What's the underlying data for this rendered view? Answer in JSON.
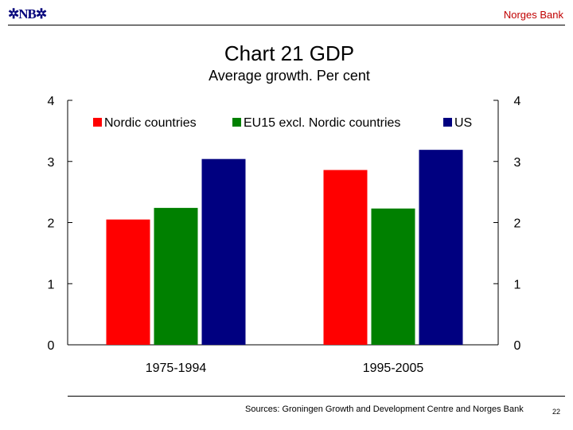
{
  "header": {
    "logo": "NB",
    "bank": "Norges Bank"
  },
  "footer": {
    "source": "Sources: Groningen Growth and Development Centre and Norges Bank",
    "page": "22"
  },
  "chart_data": {
    "type": "bar",
    "title": "Chart 21 GDP",
    "subtitle": "Average growth. Per cent",
    "categories": [
      "1975-1994",
      "1995-2005"
    ],
    "series": [
      {
        "name": "Nordic countries",
        "color": "#ff0000",
        "values": [
          2.05,
          2.86
        ]
      },
      {
        "name": "EU15 excl. Nordic countries",
        "color": "#008000",
        "values": [
          2.24,
          2.23
        ]
      },
      {
        "name": "US",
        "color": "#000080",
        "values": [
          3.04,
          3.19
        ]
      }
    ],
    "ylim": [
      0,
      4
    ],
    "yticks": [
      0,
      1,
      2,
      3,
      4
    ],
    "dual_y_axis": true,
    "grid": false,
    "legend": "top"
  }
}
